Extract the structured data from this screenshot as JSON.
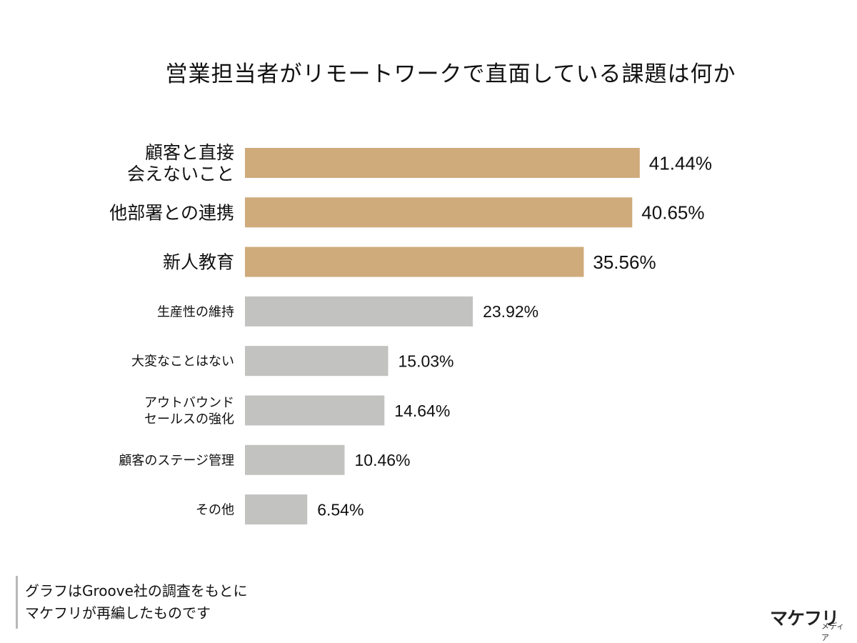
{
  "title": "営業担当者がリモートワークで直面している課題は何か",
  "colors": {
    "highlight": "#cfaa7b",
    "normal": "#c2c3c0",
    "text": "#111111"
  },
  "chart_data": {
    "type": "bar",
    "orientation": "horizontal",
    "title": "営業担当者がリモートワークで直面している課題は何か",
    "xlabel": "",
    "ylabel": "",
    "grid": false,
    "unit": "%",
    "xlim": [
      0,
      47
    ],
    "categories": [
      [
        "顧客と直接",
        "会えないこと"
      ],
      [
        "他部署との連携"
      ],
      [
        "新人教育"
      ],
      [
        "生産性の維持"
      ],
      [
        "大変なことはない"
      ],
      [
        "アウトバウンド",
        "セールスの強化"
      ],
      [
        "顧客のステージ管理"
      ],
      [
        "その他"
      ]
    ],
    "values": [
      41.44,
      40.65,
      35.56,
      23.92,
      15.03,
      14.64,
      10.46,
      6.54
    ],
    "value_labels": [
      "41.44%",
      "40.65%",
      "35.56%",
      "23.92%",
      "15.03%",
      "14.64%",
      "10.46%",
      "6.54%"
    ],
    "highlighted": [
      true,
      true,
      true,
      false,
      false,
      false,
      false,
      false
    ]
  },
  "note": {
    "line1": "グラフはGroove社の調査をもとに",
    "line2": "マケフリが再編したものです"
  },
  "logo": {
    "main": "マケフリ",
    "sub": "メディア"
  }
}
